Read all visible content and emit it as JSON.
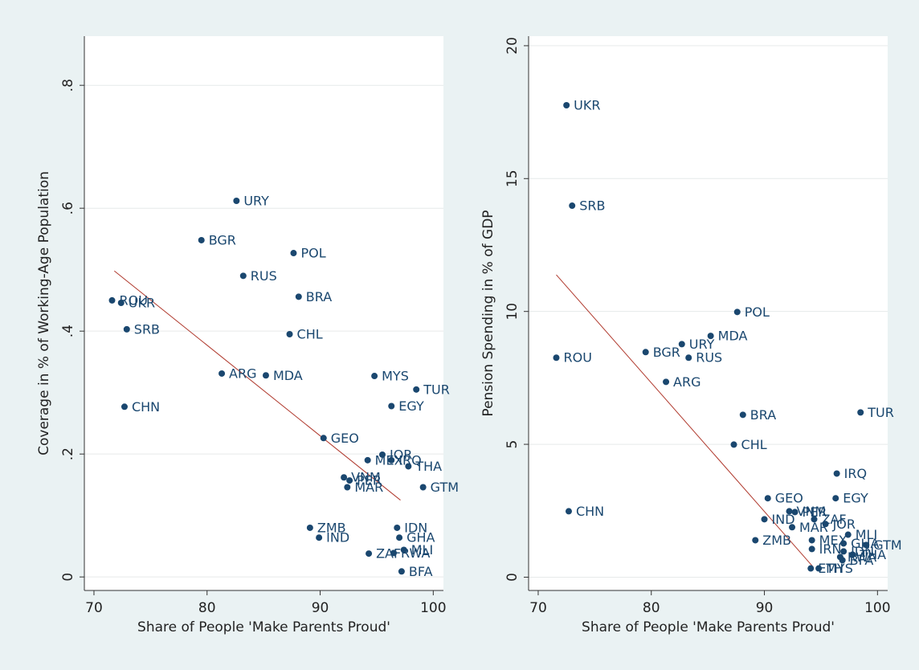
{
  "chart_data": [
    {
      "type": "scatter",
      "x_label": "Share of People 'Make Parents Proud'",
      "y_label": "Coverage in % of Working-Age Population",
      "color": "#1a476f",
      "fit_color": "#b03a2e",
      "grid": true,
      "xlim": [
        69.15,
        100.9
      ],
      "ylim": [
        -0.022,
        0.88
      ],
      "xticks": [
        70,
        80,
        90,
        100
      ],
      "yticks": [
        0,
        {
          "value": 0.2,
          "label": ".2"
        },
        {
          "value": 0.4,
          "label": ".4"
        },
        {
          "value": 0.6,
          "label": ".6"
        },
        {
          "value": 0.8,
          "label": ".8"
        }
      ],
      "labels": [
        "URY",
        "BGR",
        "POL",
        "RUS",
        "BRA",
        "ROU",
        "UKR",
        "SRB",
        "CHL",
        "ARG",
        "MDA",
        "MYS",
        "TUR",
        "EGY",
        "CHN",
        "GEO",
        "JOR",
        "MEX",
        "IRQ",
        "THA",
        "VNM",
        "PER",
        "MAR",
        "GTM",
        "ZMB",
        "IND",
        "IDN",
        "GHA",
        "MLI",
        "RWA",
        "ZAF",
        "BFA"
      ],
      "x": [
        82.6,
        79.5,
        87.65,
        83.2,
        88.1,
        71.6,
        72.4,
        72.9,
        87.3,
        81.3,
        85.2,
        94.8,
        98.5,
        96.3,
        72.7,
        90.3,
        95.5,
        94.2,
        96.3,
        97.8,
        92.1,
        92.6,
        92.4,
        99.1,
        89.1,
        89.9,
        96.8,
        97.0,
        97.4,
        96.5,
        94.3,
        97.2
      ],
      "y": [
        0.612,
        0.548,
        0.527,
        0.49,
        0.456,
        0.45,
        0.446,
        0.403,
        0.395,
        0.331,
        0.328,
        0.327,
        0.305,
        0.278,
        0.277,
        0.226,
        0.199,
        0.19,
        0.19,
        0.18,
        0.162,
        0.157,
        0.146,
        0.146,
        0.08,
        0.064,
        0.08,
        0.064,
        0.044,
        0.039,
        0.038,
        0.009
      ],
      "fit": {
        "x": [
          71.8,
          97.1
        ],
        "y": [
          0.498,
          0.125
        ]
      }
    },
    {
      "type": "scatter",
      "x_label": "Share of People 'Make Parents Proud'",
      "y_label": "Pension Spending in % of GDP",
      "color": "#1a476f",
      "fit_color": "#b03a2e",
      "grid": true,
      "xlim": [
        69.15,
        100.9
      ],
      "ylim": [
        -0.5,
        20.36
      ],
      "xticks": [
        70,
        80,
        90,
        100
      ],
      "yticks": [
        0,
        5,
        10,
        15,
        20
      ],
      "labels": [
        "UKR",
        "SRB",
        "POL",
        "MDA",
        "URY",
        "BGR",
        "ROU",
        "RUS",
        "ARG",
        "TUR",
        "BRA",
        "CHL",
        "IRQ",
        "CHN",
        "GEO",
        "EGY",
        "VNM",
        "PER",
        "IND",
        "ZAF",
        "JOR",
        "MAR",
        "MLI",
        "ZMB",
        "MEX",
        "GTM",
        "GHA",
        "IRN",
        "IDN",
        "THA",
        "RWA",
        "BFA",
        "ETH",
        "MYS"
      ],
      "x": [
        72.5,
        73.0,
        87.6,
        85.25,
        82.7,
        79.5,
        71.6,
        83.3,
        81.3,
        98.5,
        88.1,
        87.3,
        96.4,
        72.7,
        90.3,
        96.3,
        92.2,
        92.7,
        90.0,
        94.4,
        95.4,
        92.45,
        97.4,
        89.2,
        94.2,
        99.0,
        97.0,
        94.2,
        97.0,
        97.8,
        96.7,
        96.9,
        94.1,
        94.8
      ],
      "y": [
        17.76,
        13.98,
        9.98,
        9.08,
        8.77,
        8.47,
        8.26,
        8.26,
        7.35,
        6.2,
        6.11,
        4.99,
        3.9,
        2.48,
        2.97,
        2.97,
        2.48,
        2.45,
        2.18,
        2.18,
        2.0,
        1.88,
        1.6,
        1.39,
        1.39,
        1.21,
        1.27,
        1.06,
        0.97,
        0.85,
        0.76,
        0.64,
        0.33,
        0.33
      ],
      "fit": {
        "x": [
          71.6,
          94.3
        ],
        "y": [
          11.38,
          0.39
        ]
      }
    }
  ]
}
